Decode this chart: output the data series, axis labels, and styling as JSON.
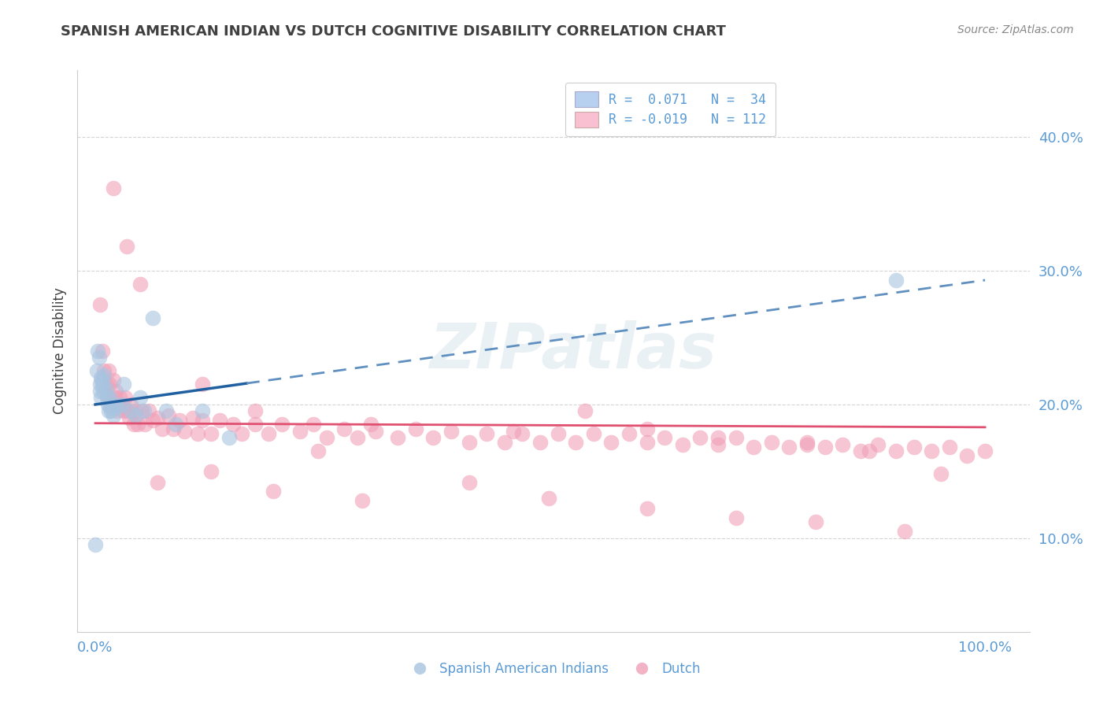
{
  "title": "SPANISH AMERICAN INDIAN VS DUTCH COGNITIVE DISABILITY CORRELATION CHART",
  "source": "Source: ZipAtlas.com",
  "ylabel": "Cognitive Disability",
  "ytick_labels": [
    "10.0%",
    "20.0%",
    "30.0%",
    "40.0%"
  ],
  "ytick_values": [
    0.1,
    0.2,
    0.3,
    0.4
  ],
  "xtick_labels": [
    "0.0%",
    "100.0%"
  ],
  "xtick_values": [
    0.0,
    1.0
  ],
  "xlim": [
    -0.02,
    1.05
  ],
  "ylim": [
    0.03,
    0.45
  ],
  "blue_scatter_color": "#a8c4e0",
  "pink_scatter_color": "#f0a0b8",
  "blue_line_solid_color": "#2060a0",
  "blue_line_dash_color": "#6090c0",
  "pink_line_color": "#e05070",
  "text_color": "#5b9bd5",
  "title_color": "#404040",
  "grid_color": "#d0d0d0",
  "background_color": "#ffffff",
  "watermark": "ZIPatlas",
  "legend_box_blue": "#b8d0f0",
  "legend_box_pink": "#f8c0d0",
  "blue_scatter_x": [
    0.0,
    0.002,
    0.003,
    0.004,
    0.005,
    0.005,
    0.006,
    0.006,
    0.007,
    0.008,
    0.009,
    0.01,
    0.012,
    0.013,
    0.014,
    0.015,
    0.016,
    0.017,
    0.018,
    0.02,
    0.022,
    0.025,
    0.03,
    0.032,
    0.04,
    0.045,
    0.05,
    0.055,
    0.065,
    0.08,
    0.09,
    0.12,
    0.15,
    0.9
  ],
  "blue_scatter_y": [
    0.095,
    0.225,
    0.24,
    0.235,
    0.215,
    0.21,
    0.22,
    0.205,
    0.218,
    0.215,
    0.21,
    0.222,
    0.212,
    0.205,
    0.2,
    0.195,
    0.205,
    0.198,
    0.195,
    0.192,
    0.2,
    0.198,
    0.2,
    0.215,
    0.195,
    0.192,
    0.205,
    0.195,
    0.265,
    0.195,
    0.185,
    0.195,
    0.175,
    0.293
  ],
  "pink_scatter_x": [
    0.005,
    0.008,
    0.01,
    0.012,
    0.014,
    0.015,
    0.016,
    0.018,
    0.02,
    0.022,
    0.023,
    0.025,
    0.027,
    0.03,
    0.032,
    0.034,
    0.036,
    0.038,
    0.04,
    0.043,
    0.045,
    0.048,
    0.052,
    0.056,
    0.06,
    0.065,
    0.07,
    0.075,
    0.082,
    0.088,
    0.095,
    0.1,
    0.11,
    0.115,
    0.12,
    0.13,
    0.14,
    0.155,
    0.165,
    0.18,
    0.195,
    0.21,
    0.23,
    0.245,
    0.26,
    0.28,
    0.295,
    0.315,
    0.34,
    0.36,
    0.38,
    0.4,
    0.42,
    0.44,
    0.46,
    0.48,
    0.5,
    0.52,
    0.54,
    0.56,
    0.58,
    0.6,
    0.62,
    0.64,
    0.66,
    0.68,
    0.7,
    0.72,
    0.74,
    0.76,
    0.78,
    0.8,
    0.82,
    0.84,
    0.86,
    0.88,
    0.9,
    0.92,
    0.94,
    0.96,
    0.98,
    1.0,
    0.05,
    0.12,
    0.18,
    0.25,
    0.31,
    0.47,
    0.55,
    0.62,
    0.7,
    0.8,
    0.87,
    0.95,
    0.02,
    0.035,
    0.07,
    0.13,
    0.2,
    0.3,
    0.42,
    0.51,
    0.62,
    0.72,
    0.81,
    0.91
  ],
  "pink_scatter_y": [
    0.275,
    0.24,
    0.225,
    0.215,
    0.205,
    0.225,
    0.215,
    0.2,
    0.218,
    0.205,
    0.21,
    0.195,
    0.205,
    0.2,
    0.195,
    0.205,
    0.195,
    0.19,
    0.2,
    0.185,
    0.195,
    0.185,
    0.195,
    0.185,
    0.195,
    0.188,
    0.19,
    0.182,
    0.192,
    0.182,
    0.188,
    0.18,
    0.19,
    0.178,
    0.188,
    0.178,
    0.188,
    0.185,
    0.178,
    0.185,
    0.178,
    0.185,
    0.18,
    0.185,
    0.175,
    0.182,
    0.175,
    0.18,
    0.175,
    0.182,
    0.175,
    0.18,
    0.172,
    0.178,
    0.172,
    0.178,
    0.172,
    0.178,
    0.172,
    0.178,
    0.172,
    0.178,
    0.172,
    0.175,
    0.17,
    0.175,
    0.17,
    0.175,
    0.168,
    0.172,
    0.168,
    0.172,
    0.168,
    0.17,
    0.165,
    0.17,
    0.165,
    0.168,
    0.165,
    0.168,
    0.162,
    0.165,
    0.29,
    0.215,
    0.195,
    0.165,
    0.185,
    0.18,
    0.195,
    0.182,
    0.175,
    0.17,
    0.165,
    0.148,
    0.362,
    0.318,
    0.142,
    0.15,
    0.135,
    0.128,
    0.142,
    0.13,
    0.122,
    0.115,
    0.112,
    0.105
  ]
}
